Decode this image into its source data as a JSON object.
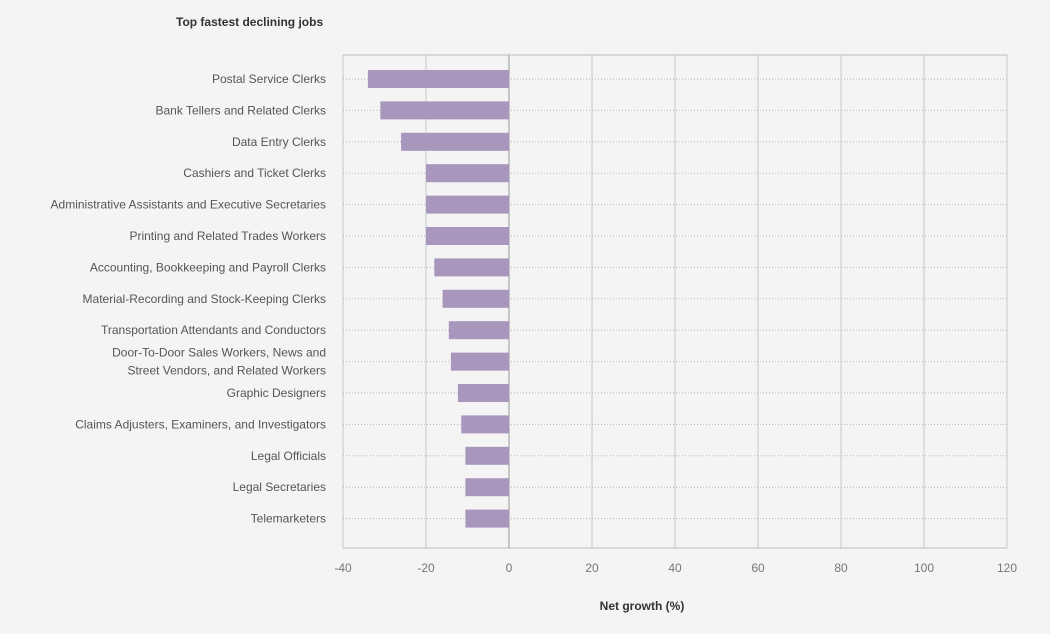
{
  "chart_data": {
    "type": "bar",
    "orientation": "horizontal",
    "title": "Top fastest declining jobs",
    "xlabel": "Net growth (%)",
    "ylabel": "",
    "xlim": [
      -40,
      120
    ],
    "xticks": [
      -40,
      -20,
      0,
      20,
      40,
      60,
      80,
      100,
      120
    ],
    "grid": true,
    "bar_color": "#a896bd",
    "categories": [
      [
        "Postal Service Clerks"
      ],
      [
        "Bank Tellers and Related Clerks"
      ],
      [
        "Data Entry Clerks"
      ],
      [
        "Cashiers and Ticket Clerks"
      ],
      [
        "Administrative Assistants and Executive Secretaries"
      ],
      [
        "Printing and Related Trades Workers"
      ],
      [
        "Accounting, Bookkeeping and Payroll Clerks"
      ],
      [
        "Material-Recording and Stock-Keeping Clerks"
      ],
      [
        "Transportation Attendants and Conductors"
      ],
      [
        "Door-To-Door Sales Workers, News and",
        "Street Vendors, and Related Workers"
      ],
      [
        "Graphic Designers"
      ],
      [
        "Claims Adjusters, Examiners, and Investigators"
      ],
      [
        "Legal Officials"
      ],
      [
        "Legal Secretaries"
      ],
      [
        "Telemarketers"
      ]
    ],
    "values": [
      -34,
      -31,
      -26,
      -20,
      -20,
      -20,
      -18,
      -16,
      -14.5,
      -14,
      -12.3,
      -11.5,
      -10.5,
      -10.5,
      -10.5
    ]
  }
}
